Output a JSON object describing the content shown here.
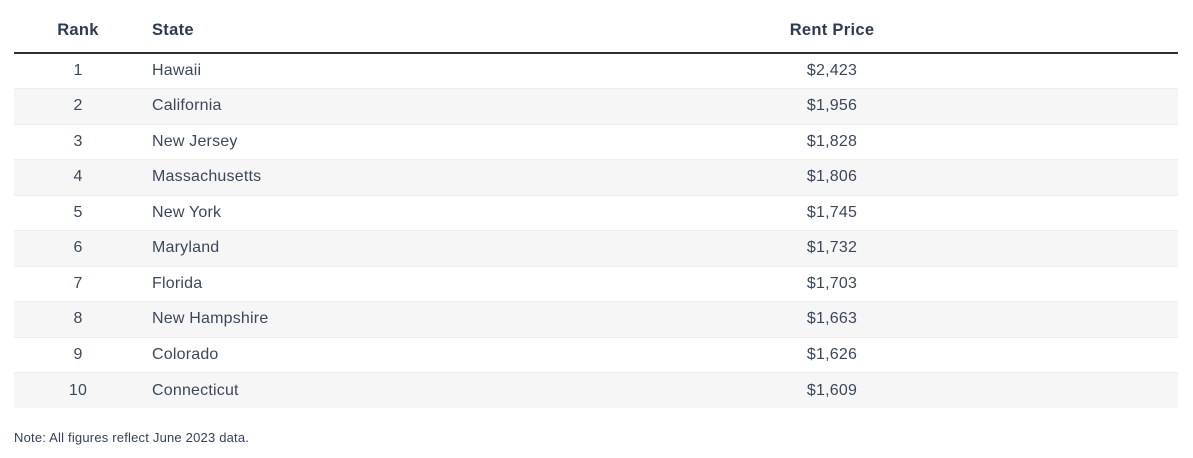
{
  "table": {
    "columns": [
      {
        "key": "rank",
        "label": "Rank"
      },
      {
        "key": "state",
        "label": "State"
      },
      {
        "key": "rent",
        "label": "Rent Price"
      }
    ],
    "rows": [
      {
        "rank": "1",
        "state": "Hawaii",
        "rent": "$2,423"
      },
      {
        "rank": "2",
        "state": "California",
        "rent": "$1,956"
      },
      {
        "rank": "3",
        "state": "New Jersey",
        "rent": "$1,828"
      },
      {
        "rank": "4",
        "state": "Massachusetts",
        "rent": "$1,806"
      },
      {
        "rank": "5",
        "state": "New York",
        "rent": "$1,745"
      },
      {
        "rank": "6",
        "state": "Maryland",
        "rent": "$1,732"
      },
      {
        "rank": "7",
        "state": "Florida",
        "rent": "$1,703"
      },
      {
        "rank": "8",
        "state": "New Hampshire",
        "rent": "$1,663"
      },
      {
        "rank": "9",
        "state": "Colorado",
        "rent": "$1,626"
      },
      {
        "rank": "10",
        "state": "Connecticut",
        "rent": "$1,609"
      }
    ]
  },
  "note": "Note: All figures reflect June 2023 data.",
  "colors": {
    "header_text": "#2f3a52",
    "body_text": "#3c4859",
    "header_rule": "#2d2d33",
    "stripe": "#f6f6f7"
  },
  "chart_data": {
    "type": "table",
    "title": "",
    "columns": [
      "Rank",
      "State",
      "Rent Price"
    ],
    "rows": [
      [
        1,
        "Hawaii",
        2423
      ],
      [
        2,
        "California",
        1956
      ],
      [
        3,
        "New Jersey",
        1828
      ],
      [
        4,
        "Massachusetts",
        1806
      ],
      [
        5,
        "New York",
        1745
      ],
      [
        6,
        "Maryland",
        1732
      ],
      [
        7,
        "Florida",
        1703
      ],
      [
        8,
        "New Hampshire",
        1663
      ],
      [
        9,
        "Colorado",
        1626
      ],
      [
        10,
        "Connecticut",
        1609
      ]
    ],
    "note": "Note: All figures reflect June 2023 data."
  }
}
